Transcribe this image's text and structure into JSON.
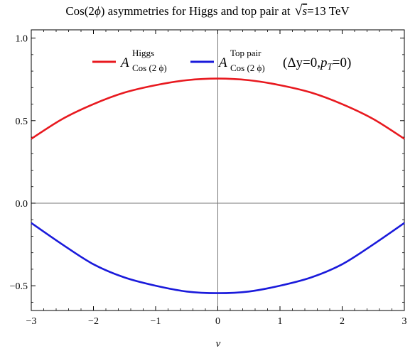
{
  "chart_data": {
    "type": "line",
    "title": {
      "prefix": "Cos(2",
      "phi": "ϕ",
      "middle": ") asymmetries for Higgs and top pair at",
      "sqrt": "√",
      "s": "s",
      "equals": "=13 TeV"
    },
    "xlabel": "ν",
    "ylabel": "",
    "xlim": [
      -3,
      3
    ],
    "ylim": [
      -0.65,
      1.05
    ],
    "xticks": [
      -3,
      -2,
      -1,
      0,
      1,
      2,
      3
    ],
    "xtick_labels": [
      "−3",
      "−2",
      "−1",
      "0",
      "1",
      "2",
      "3"
    ],
    "yticks": [
      -0.5,
      0.0,
      0.5,
      1.0
    ],
    "ytick_labels": [
      "−0.5",
      "0.0",
      "0.5",
      "1.0"
    ],
    "grid": false,
    "legend_position": "top",
    "series": [
      {
        "name": "A Higgs Cos(2ϕ)",
        "legend": {
          "main": "A",
          "sup": "Higgs",
          "sub": "Cos (2 ϕ)",
          "tail": ""
        },
        "color": "#e8191f",
        "x": [
          -3.0,
          -2.5,
          -2.0,
          -1.5,
          -1.0,
          -0.5,
          0.0,
          0.5,
          1.0,
          1.5,
          2.0,
          2.5,
          3.0
        ],
        "values": [
          0.39,
          0.51,
          0.6,
          0.67,
          0.715,
          0.745,
          0.755,
          0.745,
          0.715,
          0.67,
          0.6,
          0.51,
          0.39
        ]
      },
      {
        "name": "A Top pair Cos(2ϕ)(Δy=0, pT=0)",
        "legend": {
          "main": "A",
          "sup": "Top pair",
          "sub": "Cos (2 ϕ)",
          "tail_pre": "(Δy=0,",
          "tail_p": "p",
          "tail_T": "T",
          "tail_post": "=0)"
        },
        "color": "#1a1adb",
        "x": [
          -3.0,
          -2.5,
          -2.0,
          -1.5,
          -1.0,
          -0.5,
          0.0,
          0.5,
          1.0,
          1.5,
          2.0,
          2.5,
          3.0
        ],
        "values": [
          -0.12,
          -0.25,
          -0.37,
          -0.45,
          -0.5,
          -0.535,
          -0.545,
          -0.535,
          -0.5,
          -0.45,
          -0.37,
          -0.25,
          -0.12
        ]
      }
    ]
  }
}
